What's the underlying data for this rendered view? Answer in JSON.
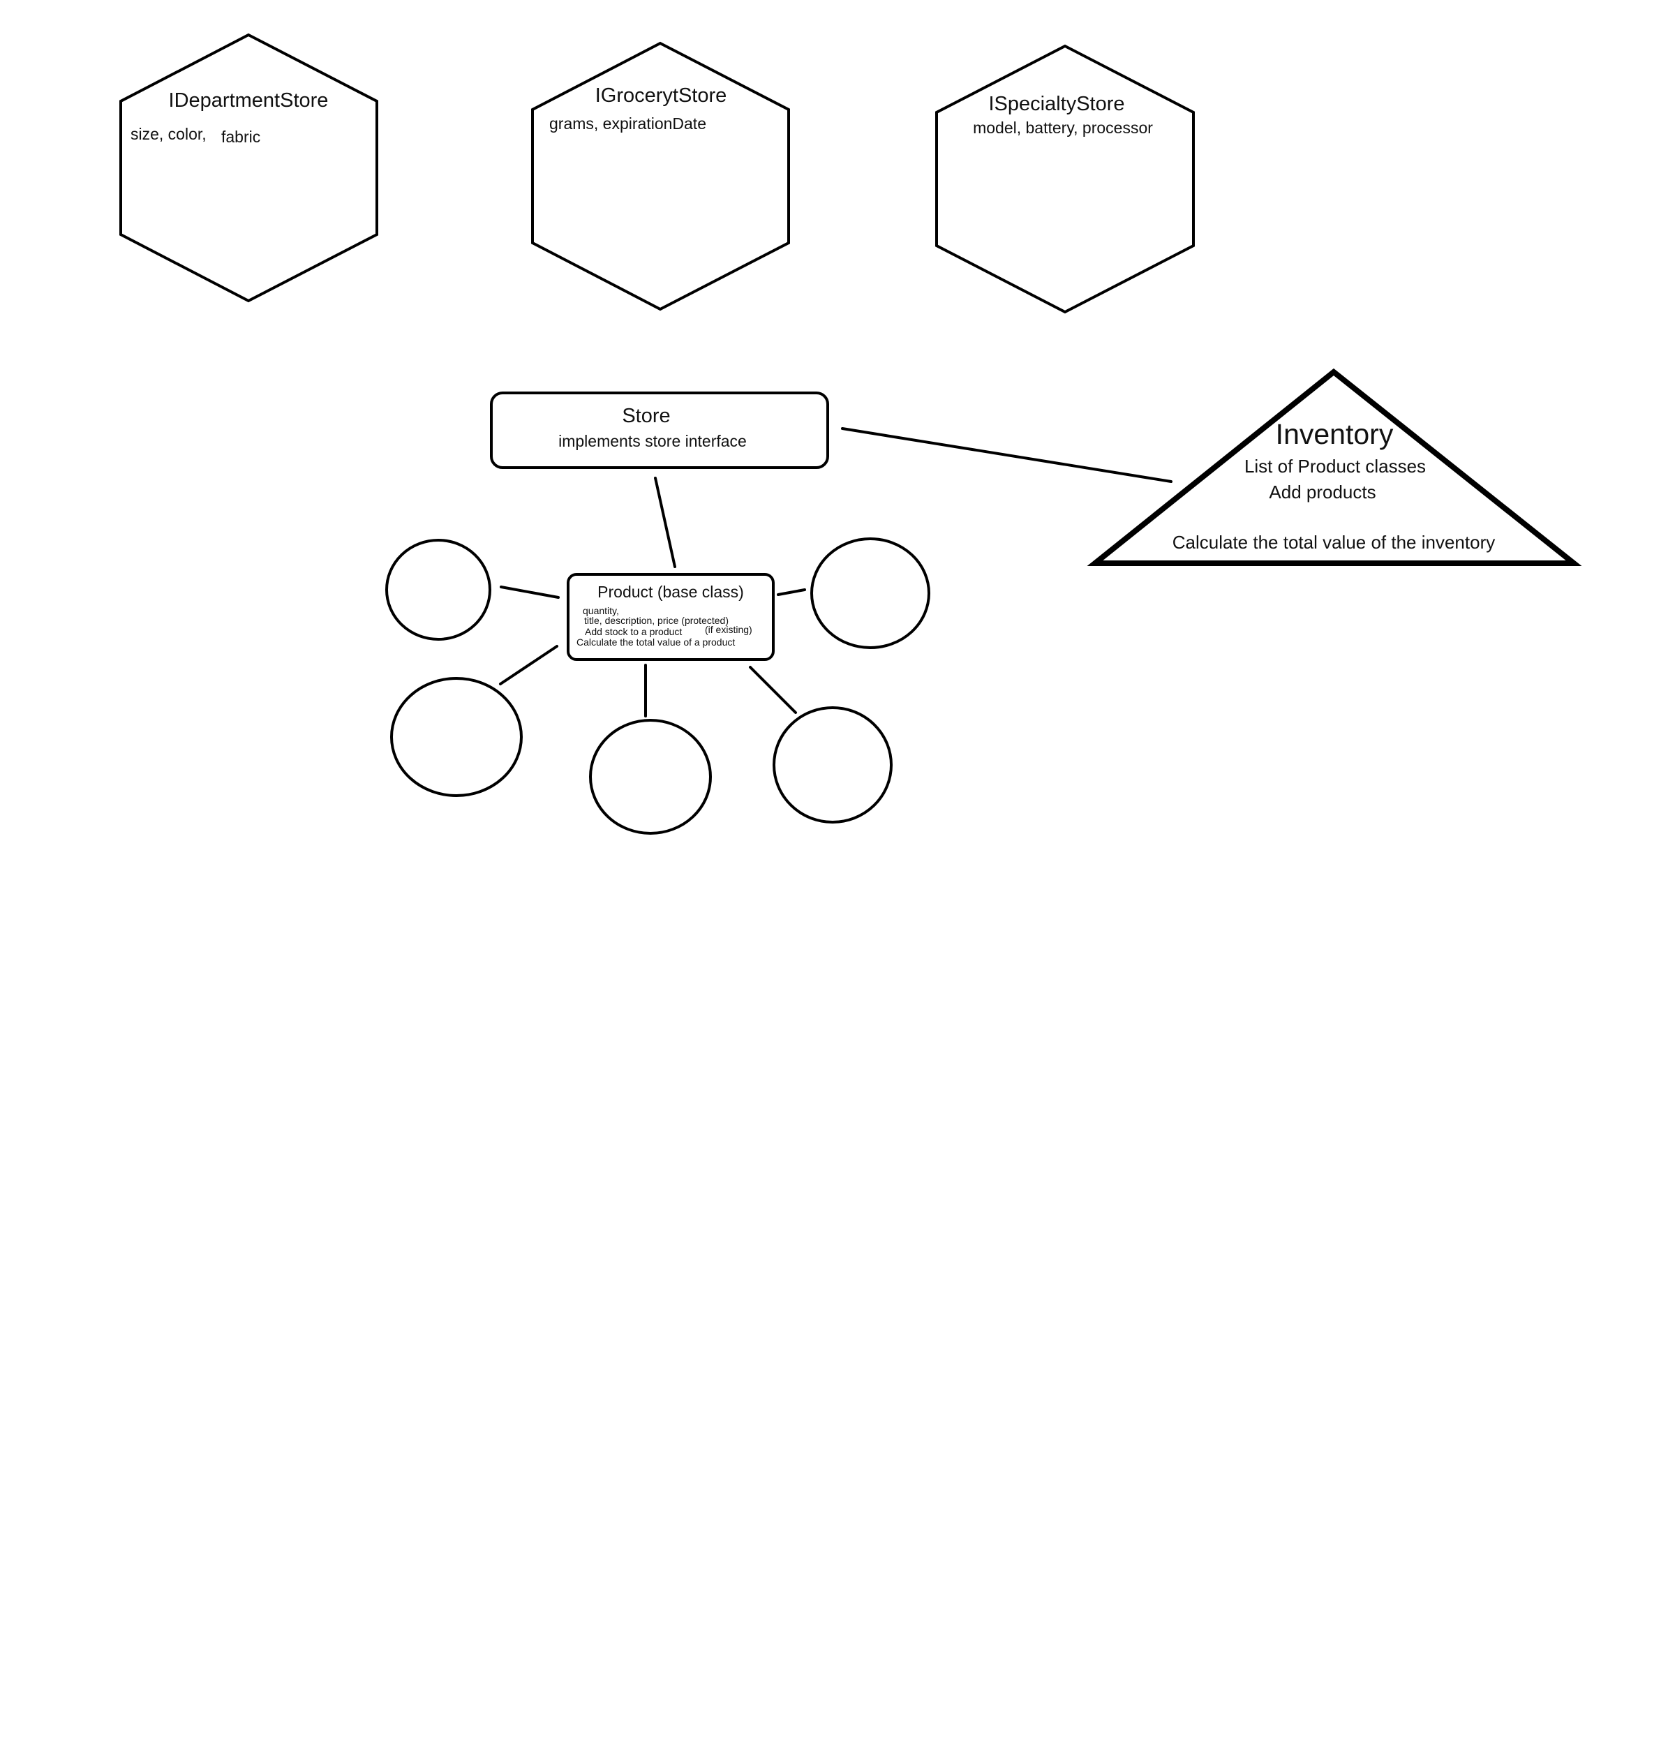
{
  "interfaces": [
    {
      "name": "IDepartmentStore",
      "attributes_main": "size, color,",
      "attributes_extra": "fabric"
    },
    {
      "name": "IGrocerytStore",
      "attributes": "grams, expirationDate"
    },
    {
      "name": "ISpecialtyStore",
      "attributes": "model, battery, processor"
    }
  ],
  "store": {
    "title": "Store",
    "subtitle": "implements store interface"
  },
  "inventory": {
    "title": "Inventory",
    "line1": "List of Product classes",
    "line2": "Add products",
    "line3": "Calculate the total value of the inventory"
  },
  "product": {
    "title": "Product (base class)",
    "line1": "quantity,",
    "line2": "title, description, price (protected)",
    "line3": "Add stock to a product",
    "line3_note": "(if existing)",
    "line4": "Calculate the total value of a product"
  },
  "subclass_count": 5
}
